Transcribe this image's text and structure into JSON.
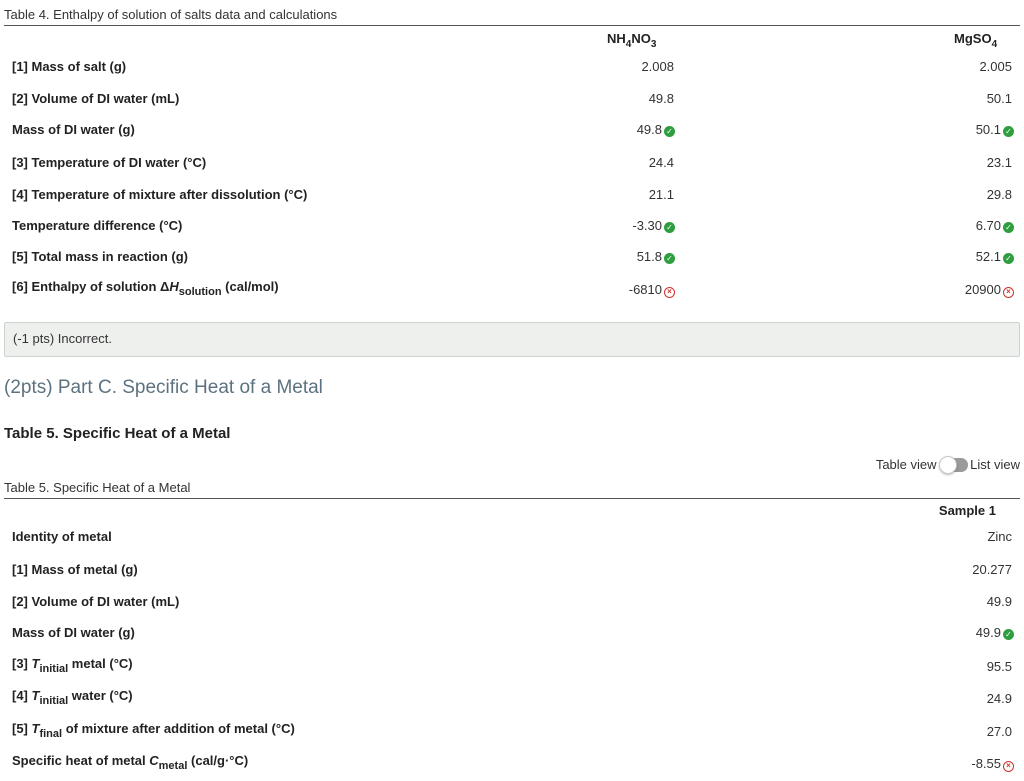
{
  "table4": {
    "caption": "Table 4. Enthalpy of solution of salts data and calculations",
    "columns": {
      "col1_main": "NH",
      "col1_s1": "4",
      "col1_mid": "NO",
      "col1_s2": "3",
      "col2_main": "MgSO",
      "col2_s1": "4"
    },
    "rows": [
      {
        "label": "[1] Mass of salt (g)",
        "v1": "2.008",
        "v1_status": "",
        "v2": "2.005",
        "v2_status": ""
      },
      {
        "label": "[2] Volume of DI water (mL)",
        "v1": "49.8",
        "v1_status": "",
        "v2": "50.1",
        "v2_status": ""
      },
      {
        "label": "Mass of DI water (g)",
        "v1": "49.8",
        "v1_status": "correct",
        "v2": "50.1",
        "v2_status": "correct"
      },
      {
        "label": "[3] Temperature of DI water (°C)",
        "v1": "24.4",
        "v1_status": "",
        "v2": "23.1",
        "v2_status": ""
      },
      {
        "label": "[4] Temperature of mixture after dissolution (°C)",
        "v1": "21.1",
        "v1_status": "",
        "v2": "29.8",
        "v2_status": ""
      },
      {
        "label": "Temperature difference (°C)",
        "v1": "-3.30",
        "v1_status": "correct",
        "v2": "6.70",
        "v2_status": "correct"
      },
      {
        "label": "[5] Total mass in reaction (g)",
        "v1": "51.8",
        "v1_status": "correct",
        "v2": "52.1",
        "v2_status": "correct"
      },
      {
        "label_pre": "[6] Enthalpy of solution Δ",
        "label_var": "H",
        "label_sub": "solution",
        "label_post": " (cal/mol)",
        "v1": "-6810",
        "v1_status": "incorrect",
        "v2": "20900",
        "v2_status": "incorrect"
      }
    ]
  },
  "feedback": {
    "text": "(-1 pts) Incorrect."
  },
  "partC": {
    "heading": "(2pts) Part C. Specific Heat of a Metal",
    "table_title": "Table 5. Specific Heat of a Metal",
    "toggle": {
      "left_label": "Table view",
      "right_label": "List view",
      "state": "table-view"
    }
  },
  "table5": {
    "caption": "Table 5. Specific Heat of a Metal",
    "column": "Sample 1",
    "rows": [
      {
        "label": "Identity of metal",
        "v": "Zinc",
        "status": ""
      },
      {
        "label": "[1] Mass of metal (g)",
        "v": "20.277",
        "status": ""
      },
      {
        "label": "[2] Volume of DI water (mL)",
        "v": "49.9",
        "status": ""
      },
      {
        "label": "Mass of DI water (g)",
        "v": "49.9",
        "status": "correct"
      },
      {
        "label_pre": "[3] ",
        "label_var": "T",
        "label_sub": "initial",
        "label_post": " metal (°C)",
        "v": "95.5",
        "status": ""
      },
      {
        "label_pre": "[4] ",
        "label_var": "T",
        "label_sub": "initial",
        "label_post": " water (°C)",
        "v": "24.9",
        "status": ""
      },
      {
        "label_pre": "[5] ",
        "label_var": "T",
        "label_sub": "final",
        "label_post": " of mixture after addition of metal (°C)",
        "v": "27.0",
        "status": ""
      },
      {
        "label_pre": "Specific heat of metal ",
        "label_var": "C",
        "label_sub": "metal",
        "label_post": " (cal/g·°C)",
        "v": "-8.55",
        "status": "incorrect"
      }
    ]
  },
  "icons": {
    "correct": "check-circle-icon",
    "incorrect": "x-circle-icon"
  },
  "colors": {
    "correct": "#2e9e3e",
    "incorrect": "#d0312d",
    "heading": "#5d7280"
  }
}
